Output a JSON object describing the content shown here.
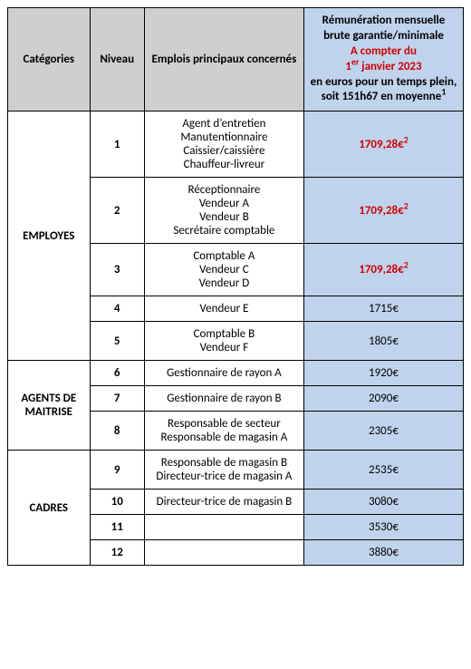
{
  "header": {
    "categories": "Catégories",
    "niveau": "Niveau",
    "emplois": "Emplois principaux concernés",
    "rem_line1": "Rémunération mensuelle brute garantie/minimale",
    "rem_red_prefix": "A compter du",
    "rem_red_line2a": "1",
    "rem_red_line2b": "er",
    "rem_red_line2c": " janvier 2023",
    "rem_line3": "en euros pour un temps plein, soit 151h67 en moyenne",
    "rem_sup": "1"
  },
  "categories": [
    {
      "name": "EMPLOYES",
      "rowspan": 5
    },
    {
      "name": "AGENTS DE MAITRISE",
      "rowspan": 3
    },
    {
      "name": "CADRES",
      "rowspan": 4
    }
  ],
  "rows": [
    {
      "cat": 0,
      "niveau": "1",
      "emplois": "Agent d’entretien\nManutentionnaire\nCaissier/caissière\nChauffeur-livreur",
      "rem": "1709,28€",
      "red": true,
      "sup2": true
    },
    {
      "niveau": "2",
      "emplois": "Réceptionnaire\nVendeur A\nVendeur B\nSecrétaire comptable",
      "rem": "1709,28€",
      "red": true,
      "sup2": true
    },
    {
      "niveau": "3",
      "emplois": "Comptable A\nVendeur C\nVendeur D",
      "rem": "1709,28€",
      "red": true,
      "sup2": true
    },
    {
      "niveau": "4",
      "emplois": "Vendeur E",
      "rem": "1715€"
    },
    {
      "niveau": "5",
      "emplois": "Comptable B\nVendeur F",
      "rem": "1805€"
    },
    {
      "cat": 1,
      "niveau": "6",
      "emplois": "Gestionnaire de rayon A",
      "rem": "1920€"
    },
    {
      "niveau": "7",
      "emplois": "Gestionnaire de rayon B",
      "rem": "2090€"
    },
    {
      "niveau": "8",
      "emplois": "Responsable de secteur\nResponsable de magasin A",
      "rem": "2305€"
    },
    {
      "cat": 2,
      "niveau": "9",
      "emplois": "Responsable de magasin B\nDirecteur-trice de magasin A",
      "rem": "2535€"
    },
    {
      "niveau": "10",
      "emplois": "Directeur-trice de magasin B",
      "rem": "3080€"
    },
    {
      "niveau": "11",
      "emplois": "",
      "rem": "3530€"
    },
    {
      "niveau": "12",
      "emplois": "",
      "rem": "3880€"
    }
  ],
  "colors": {
    "grey": "#cfcfcf",
    "blue": "#bfd4ec",
    "red": "#d00000",
    "border": "#000000"
  }
}
